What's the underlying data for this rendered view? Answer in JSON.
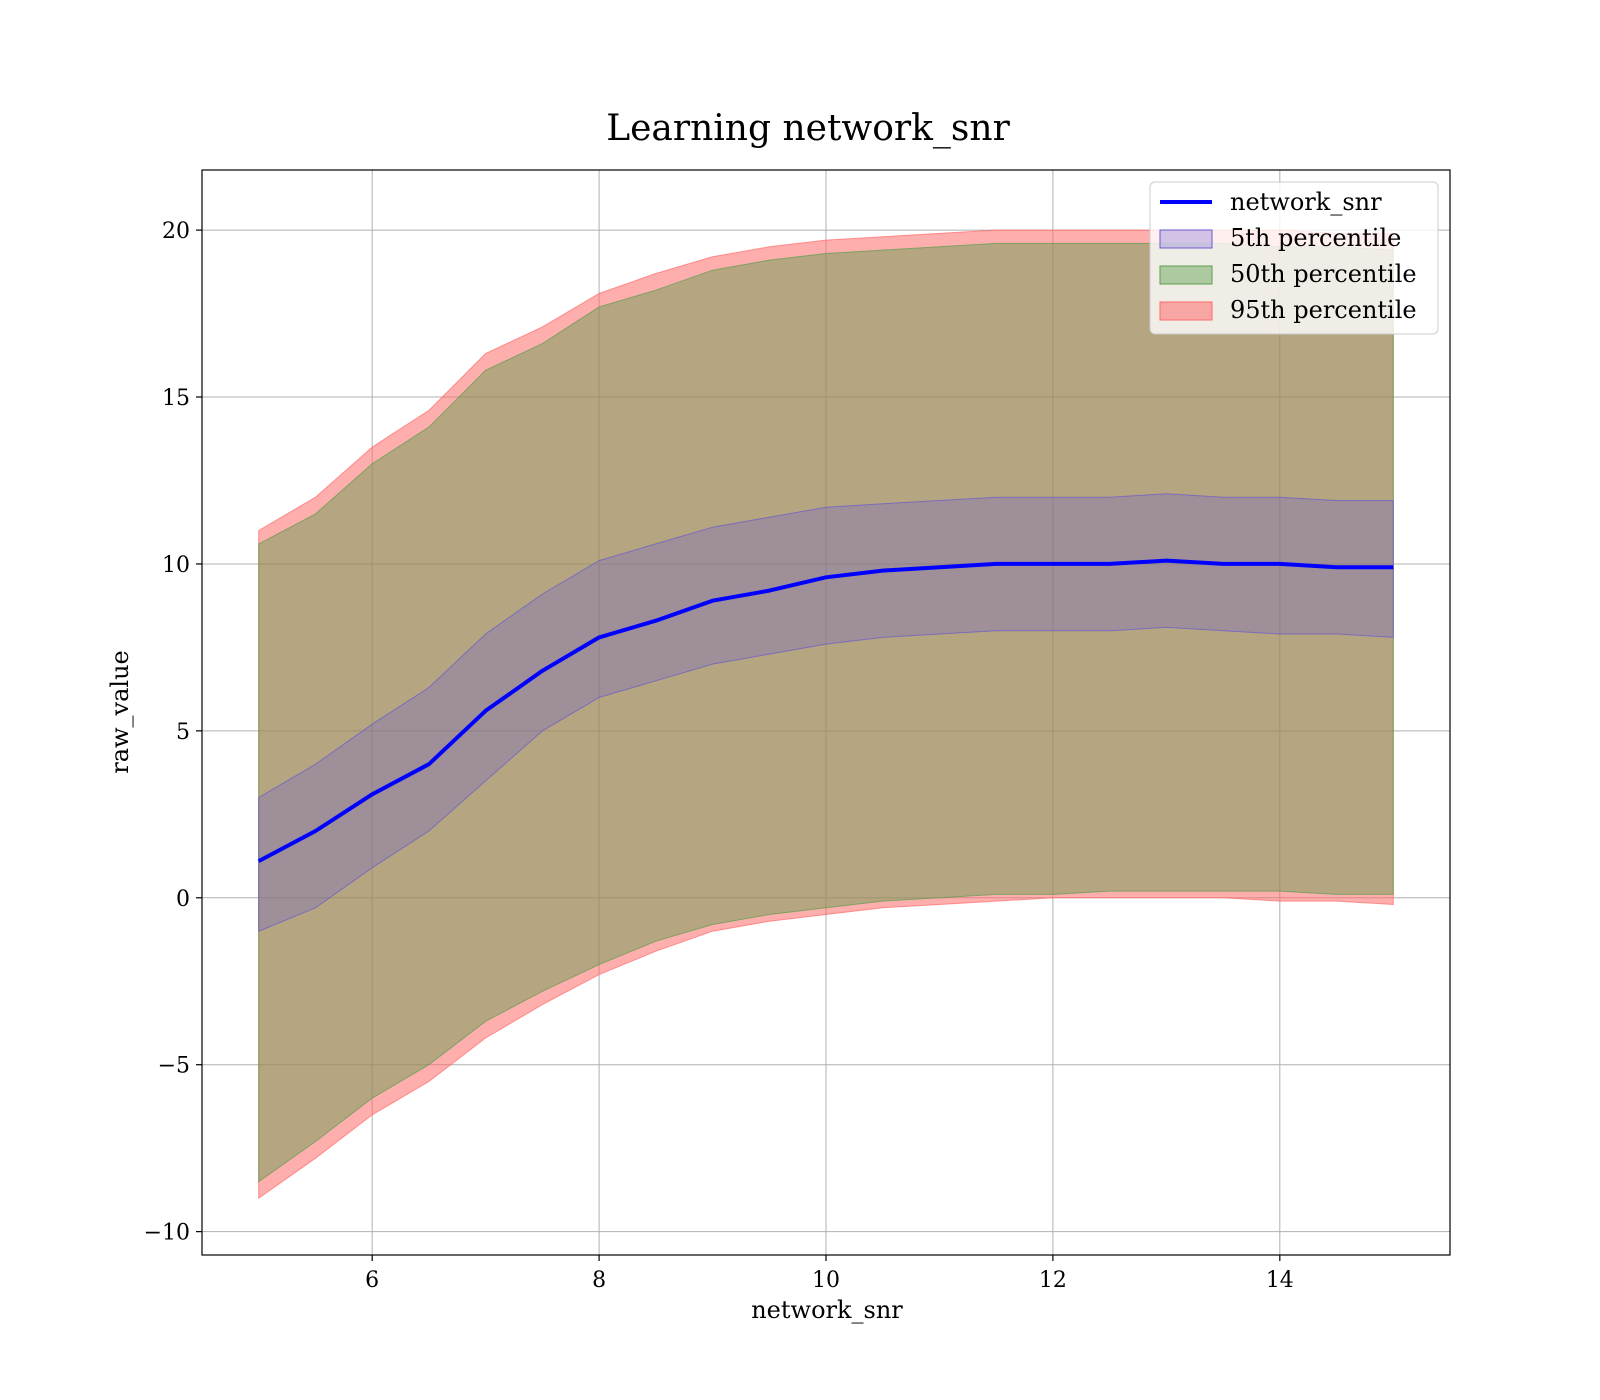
{
  "chart_data": {
    "type": "line",
    "title": "Learning network_snr",
    "xlabel": "network_snr",
    "ylabel": "raw_value",
    "xlim": [
      4.5,
      15.5
    ],
    "ylim": [
      -10.7,
      21.8
    ],
    "x_ticks": [
      6,
      8,
      10,
      12,
      14
    ],
    "y_ticks": [
      -10,
      -5,
      0,
      5,
      10,
      15,
      20
    ],
    "x_tick_labels": [
      "6",
      "8",
      "10",
      "12",
      "14"
    ],
    "y_tick_labels": [
      "−10",
      "−5",
      "0",
      "5",
      "10",
      "15",
      "20"
    ],
    "grid": true,
    "legend_position": "top-right",
    "x": [
      5.0,
      5.5,
      6.0,
      6.5,
      7.0,
      7.5,
      8.0,
      8.5,
      9.0,
      9.5,
      10.0,
      10.5,
      11.0,
      11.5,
      12.0,
      12.5,
      13.0,
      13.5,
      14.0,
      14.5,
      15.0
    ],
    "series": [
      {
        "name": "network_snr",
        "kind": "line",
        "color": "#0000ff",
        "values": [
          1.1,
          2.0,
          3.1,
          4.0,
          5.6,
          6.8,
          7.8,
          8.3,
          8.9,
          9.2,
          9.6,
          9.8,
          9.9,
          10.0,
          10.0,
          10.0,
          10.1,
          10.0,
          10.0,
          9.9,
          9.9
        ]
      },
      {
        "name": "5th percentile",
        "kind": "band",
        "color": "#6a5acd",
        "opacity": 0.3,
        "lower": [
          -1.0,
          -0.3,
          0.9,
          2.0,
          3.5,
          5.0,
          6.0,
          6.5,
          7.0,
          7.3,
          7.6,
          7.8,
          7.9,
          8.0,
          8.0,
          8.0,
          8.1,
          8.0,
          7.9,
          7.9,
          7.8
        ],
        "upper": [
          3.0,
          4.0,
          5.2,
          6.3,
          7.9,
          9.1,
          10.1,
          10.6,
          11.1,
          11.4,
          11.7,
          11.8,
          11.9,
          12.0,
          12.0,
          12.0,
          12.1,
          12.0,
          12.0,
          11.9,
          11.9
        ]
      },
      {
        "name": "50th percentile",
        "kind": "band",
        "color": "#5a9e4b",
        "opacity": 0.45,
        "lower": [
          -8.5,
          -7.3,
          -6.0,
          -5.0,
          -3.7,
          -2.8,
          -2.0,
          -1.3,
          -0.8,
          -0.5,
          -0.3,
          -0.1,
          0.0,
          0.1,
          0.1,
          0.2,
          0.2,
          0.2,
          0.2,
          0.1,
          0.1
        ],
        "upper": [
          10.6,
          11.5,
          13.0,
          14.1,
          15.8,
          16.6,
          17.7,
          18.2,
          18.8,
          19.1,
          19.3,
          19.4,
          19.5,
          19.6,
          19.6,
          19.6,
          19.6,
          19.6,
          19.5,
          19.5,
          19.4
        ]
      },
      {
        "name": "95th percentile",
        "kind": "band",
        "color": "#ff6b6b",
        "opacity": 0.55,
        "lower": [
          -9.0,
          -7.8,
          -6.5,
          -5.5,
          -4.2,
          -3.2,
          -2.3,
          -1.6,
          -1.0,
          -0.7,
          -0.5,
          -0.3,
          -0.2,
          -0.1,
          0.0,
          0.0,
          0.0,
          0.0,
          -0.1,
          -0.1,
          -0.2
        ],
        "upper": [
          11.0,
          12.0,
          13.5,
          14.6,
          16.3,
          17.1,
          18.1,
          18.7,
          19.2,
          19.5,
          19.7,
          19.8,
          19.9,
          20.0,
          20.0,
          20.0,
          20.0,
          20.0,
          20.0,
          19.9,
          19.9
        ]
      }
    ]
  }
}
